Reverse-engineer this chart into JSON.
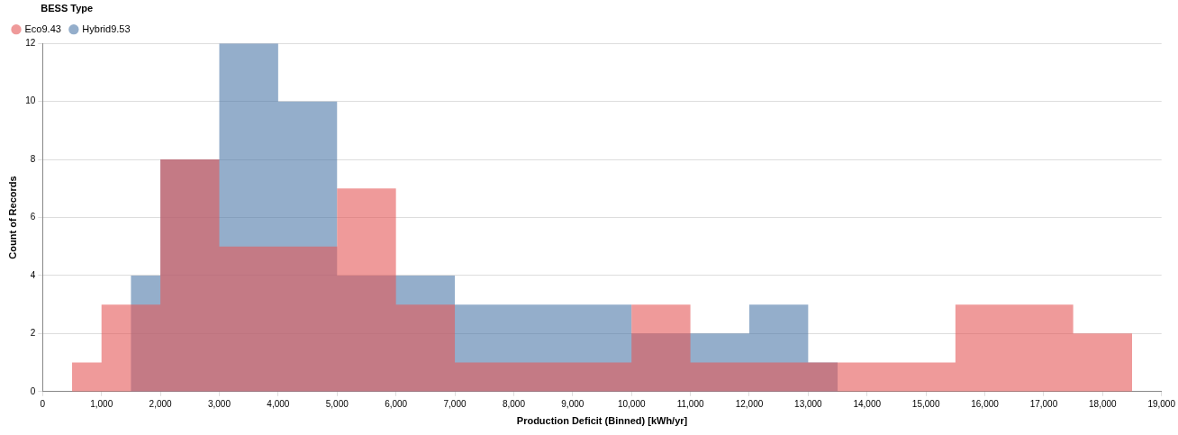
{
  "chart_data": {
    "type": "histogram",
    "xlabel": "Production Deficit (Binned) [kWh/yr]",
    "ylabel": "Count of Records",
    "legend_title": "BESS Type",
    "legend": "top left",
    "grid": "y",
    "bins": [
      500,
      1000,
      1500,
      2000,
      3000,
      4000,
      5000,
      6000,
      7000,
      10000,
      11000,
      12000,
      13000,
      13500,
      15500,
      17500,
      18500
    ],
    "series": [
      {
        "name": "Eco9.43",
        "color": "#e45756",
        "values": [
          1,
          3,
          3,
          8,
          5,
          5,
          7,
          3,
          1,
          3,
          1,
          1,
          1,
          1,
          3,
          2
        ]
      },
      {
        "name": "Hybrid9.53",
        "color": "#4c78a8",
        "values": [
          0,
          0,
          4,
          8,
          12,
          10,
          4,
          4,
          3,
          2,
          2,
          3,
          1,
          0,
          0,
          0
        ]
      }
    ],
    "xlim": [
      0,
      19000
    ],
    "xticks": [
      0,
      {
        "value": 1000,
        "label": "1,000"
      },
      {
        "value": 2000,
        "label": "2,000"
      },
      {
        "value": 3000,
        "label": "3,000"
      },
      {
        "value": 4000,
        "label": "4,000"
      },
      {
        "value": 5000,
        "label": "5,000"
      },
      {
        "value": 6000,
        "label": "6,000"
      },
      {
        "value": 7000,
        "label": "7,000"
      },
      {
        "value": 8000,
        "label": "8,000"
      },
      {
        "value": 9000,
        "label": "9,000"
      },
      {
        "value": 10000,
        "label": "10,000"
      },
      {
        "value": 11000,
        "label": "11,000"
      },
      {
        "value": 12000,
        "label": "12,000"
      },
      {
        "value": 13000,
        "label": "13,000"
      },
      {
        "value": 14000,
        "label": "14,000"
      },
      {
        "value": 15000,
        "label": "15,000"
      },
      {
        "value": 16000,
        "label": "16,000"
      },
      {
        "value": 17000,
        "label": "17,000"
      },
      {
        "value": 18000,
        "label": "18,000"
      },
      {
        "value": 19000,
        "label": "19,000"
      }
    ],
    "ylim": [
      0,
      12
    ],
    "yticks": [
      0,
      2,
      4,
      6,
      8,
      10,
      12
    ]
  }
}
